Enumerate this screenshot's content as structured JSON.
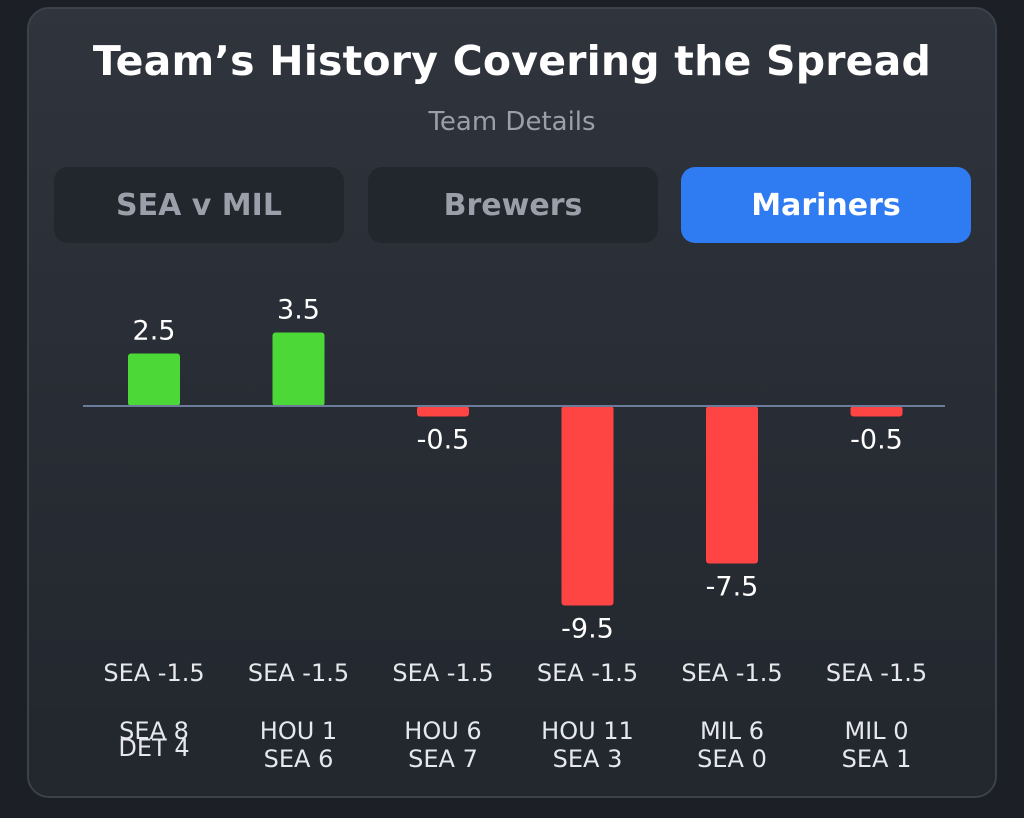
{
  "title": "Team’s History Covering the Spread",
  "subtitle": "Team Details",
  "tabs": [
    {
      "label": "SEA v MIL",
      "active": false
    },
    {
      "label": "Brewers",
      "active": false
    },
    {
      "label": "Mariners",
      "active": true
    }
  ],
  "colors": {
    "positive": "#4cd937",
    "negative": "#ff4444",
    "baseline": "#6b7c9a",
    "label": "#ffffff",
    "spread_label": "#e6e8eb",
    "score_label": "#e6e8eb",
    "tab_active": "#2f7bf2"
  },
  "chart_data": {
    "type": "bar",
    "title": "",
    "xlabel": "",
    "ylabel": "",
    "ylim": [
      -11,
      4.5
    ],
    "grid": false,
    "categories": [
      "SEA -1.5",
      "SEA -1.5",
      "SEA -1.5",
      "SEA -1.5",
      "SEA -1.5",
      "SEA -1.5"
    ],
    "values": [
      2.5,
      3.5,
      -0.5,
      -9.5,
      -7.5,
      -0.5
    ],
    "value_labels": [
      "2.5",
      "3.5",
      "-0.5",
      "-9.5",
      "-7.5",
      "-0.5"
    ],
    "scores": [
      [
        "SEA 8",
        "DET 4"
      ],
      [
        "HOU 1",
        "SEA 6"
      ],
      [
        "HOU 6",
        "SEA 7"
      ],
      [
        "HOU 11",
        "SEA 3"
      ],
      [
        "MIL 6",
        "SEA 0"
      ],
      [
        "MIL 0",
        "SEA 1"
      ]
    ]
  }
}
